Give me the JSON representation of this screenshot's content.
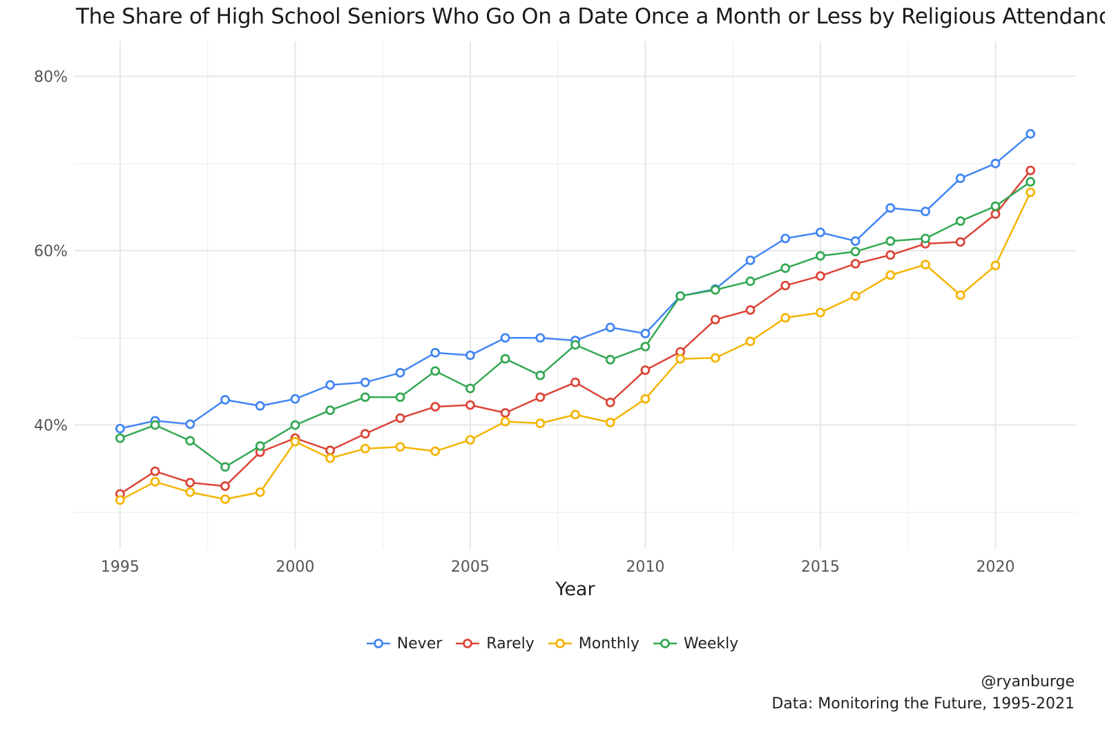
{
  "title": "The Share of High School Seniors Who Go On a Date Once a Month or Less by Religious Attendance",
  "caption": {
    "line1": "@ryanburge",
    "line2": "Data: Monitoring the Future, 1995-2021"
  },
  "chart_data": {
    "type": "line",
    "title": "The Share of High School Seniors Who Go On a Date Once a Month or Less by Religious Attendance",
    "xlabel": "Year",
    "ylabel": "",
    "x": [
      1995,
      1996,
      1997,
      1998,
      1999,
      2000,
      2001,
      2002,
      2003,
      2004,
      2005,
      2006,
      2007,
      2008,
      2009,
      2010,
      2011,
      2012,
      2013,
      2014,
      2015,
      2016,
      2017,
      2018,
      2019,
      2020,
      2021
    ],
    "xlim": [
      1993.7,
      2022.3
    ],
    "ylim": [
      0.258,
      0.84
    ],
    "xticks": [
      1995,
      2000,
      2005,
      2010,
      2015,
      2020
    ],
    "yticks": [
      0.4,
      0.6,
      0.8
    ],
    "ytick_labels": [
      "40%",
      "60%",
      "80%"
    ],
    "minor_yticks": [
      0.3,
      0.5,
      0.7
    ],
    "grid": true,
    "legend_position": "bottom",
    "series": [
      {
        "name": "Never",
        "color": "#4285f4",
        "values": [
          0.396,
          0.405,
          0.401,
          0.429,
          0.422,
          0.43,
          0.446,
          0.449,
          0.46,
          0.483,
          0.48,
          0.5,
          0.5,
          0.497,
          0.512,
          0.505,
          0.548,
          0.556,
          0.589,
          0.614,
          0.621,
          0.611,
          0.649,
          0.645,
          0.683,
          0.7,
          0.734
        ]
      },
      {
        "name": "Rarely",
        "color": "#db4437",
        "values": [
          0.321,
          0.347,
          0.334,
          0.33,
          0.369,
          0.385,
          0.371,
          0.39,
          0.408,
          0.421,
          0.423,
          0.414,
          0.432,
          0.449,
          0.426,
          0.463,
          0.484,
          0.521,
          0.532,
          0.56,
          0.571,
          0.585,
          0.595,
          0.608,
          0.61,
          0.642,
          0.692
        ]
      },
      {
        "name": "Monthly",
        "color": "#f4b400",
        "values": [
          0.314,
          0.335,
          0.323,
          0.315,
          0.323,
          0.381,
          0.362,
          0.373,
          0.375,
          0.37,
          0.383,
          0.404,
          0.402,
          0.412,
          0.403,
          0.43,
          0.476,
          0.477,
          0.496,
          0.523,
          0.529,
          0.548,
          0.572,
          0.584,
          0.549,
          0.583,
          0.667
        ]
      },
      {
        "name": "Weekly",
        "color": "#34a853",
        "values": [
          0.385,
          0.4,
          0.382,
          0.352,
          0.376,
          0.4,
          0.417,
          0.432,
          0.432,
          0.462,
          0.442,
          0.476,
          0.457,
          0.492,
          0.475,
          0.49,
          0.548,
          0.555,
          0.565,
          0.58,
          0.594,
          0.599,
          0.611,
          0.614,
          0.634,
          0.651,
          0.679
        ]
      }
    ]
  }
}
